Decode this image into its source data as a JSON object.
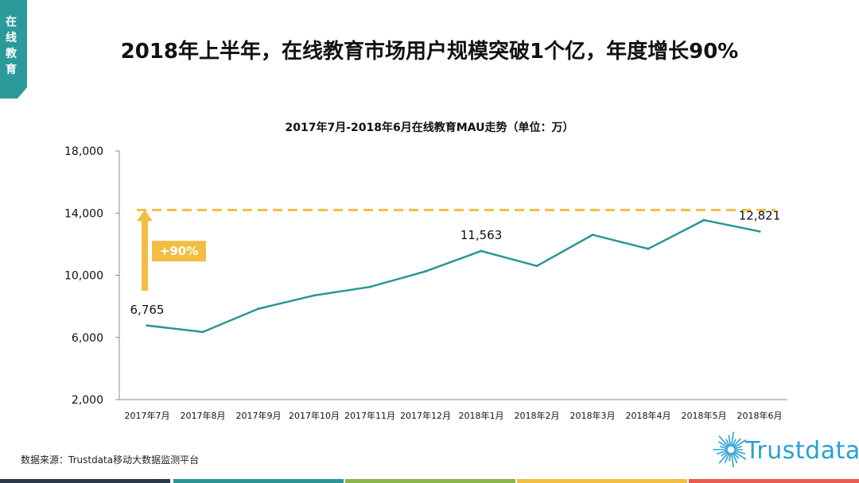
{
  "side_tab": {
    "text": "在线教育",
    "color": "#2a9a9a"
  },
  "page_title": "2018年上半年，在线教育市场用户规模突破1个亿，年度增长90%",
  "source": "数据来源：Trustdata移动大数据监测平台",
  "logo": {
    "text": "Trustdata",
    "color": "#2a9fd6"
  },
  "colors": {
    "line": "#2b9596",
    "accent": "#f2bd42",
    "axis": "#888888"
  },
  "bottom_bar_colors": [
    "#2a3a48",
    "#2b9596",
    "#8ab54a",
    "#f2bd42",
    "#e95a4f"
  ],
  "chart_data": {
    "type": "line",
    "title": "2017年7月-2018年6月在线教育MAU走势（单位：万）",
    "categories": [
      "2017年7月",
      "2017年8月",
      "2017年9月",
      "2017年10月",
      "2017年11月",
      "2017年12月",
      "2018年1月",
      "2018年2月",
      "2018年3月",
      "2018年4月",
      "2018年5月",
      "2018年6月"
    ],
    "series": [
      {
        "name": "在线教育MAU",
        "values": [
          6765,
          6350,
          7850,
          8700,
          9250,
          10250,
          11563,
          10600,
          12600,
          11700,
          13550,
          12821
        ]
      }
    ],
    "ylim": [
      2000,
      18000
    ],
    "yticks": [
      2000,
      6000,
      10000,
      14000,
      18000
    ],
    "ytick_labels": [
      "2,000",
      "6,000",
      "10,000",
      "14,000",
      "18,000"
    ],
    "data_labels": [
      {
        "index": 0,
        "text": "6,765"
      },
      {
        "index": 6,
        "text": "11,563"
      },
      {
        "index": 11,
        "text": "12,821"
      }
    ],
    "reference_line": {
      "value": 14200,
      "style": "dashed"
    },
    "growth_annotation": {
      "text": "+90%",
      "from_value": 9000,
      "to_value": 14000
    }
  }
}
